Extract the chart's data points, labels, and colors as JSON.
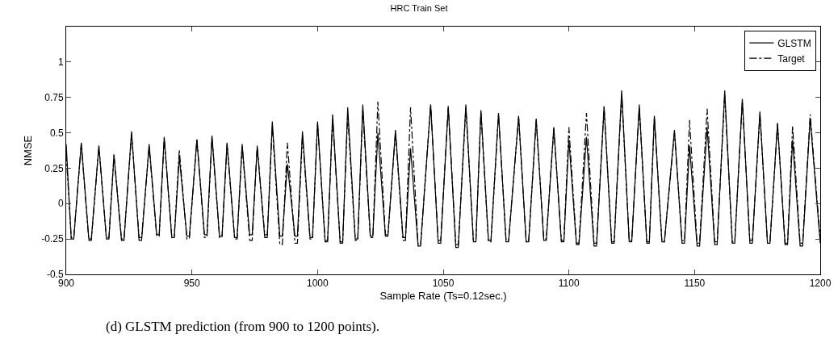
{
  "chart_data": {
    "type": "line",
    "title": "HRC Train Set",
    "xlabel": "Sample Rate (Ts=0.12sec.)",
    "ylabel": "NMSE",
    "annotations": [
      "(d) GLSTM prediction (from 900 to 1200 points)."
    ],
    "xlim": [
      900,
      1200
    ],
    "xticks": [
      900,
      950,
      1000,
      1050,
      1100,
      1150,
      1200
    ],
    "ylim": [
      -0.5,
      1.25
    ],
    "yticks": [
      -0.5,
      -0.25,
      0,
      0.25,
      0.5,
      0.75,
      1
    ],
    "grid": false,
    "legend": "top right",
    "marker": "none",
    "x": [
      900,
      902,
      903,
      906,
      909,
      910,
      913,
      916,
      917,
      919,
      922,
      923,
      926,
      929,
      930,
      933,
      936,
      937,
      939,
      942,
      943,
      945,
      948,
      949,
      952,
      955,
      956,
      958,
      961,
      962,
      964,
      967,
      968,
      970,
      973,
      974,
      976,
      979,
      980,
      982,
      985,
      986,
      988,
      991,
      992,
      994,
      997,
      998,
      1000,
      1003,
      1004,
      1006,
      1009,
      1010,
      1012,
      1015,
      1016,
      1018,
      1021,
      1022,
      1024,
      1027,
      1028,
      1031,
      1034,
      1035,
      1037,
      1040,
      1041,
      1045,
      1048,
      1049,
      1052,
      1055,
      1056,
      1059,
      1062,
      1063,
      1065,
      1068,
      1069,
      1072,
      1075,
      1076,
      1080,
      1083,
      1084,
      1087,
      1090,
      1091,
      1094,
      1097,
      1098,
      1100,
      1103,
      1104,
      1107,
      1110,
      1111,
      1114,
      1117,
      1118,
      1121,
      1124,
      1125,
      1128,
      1131,
      1132,
      1134,
      1137,
      1138,
      1142,
      1145,
      1146,
      1148,
      1151,
      1152,
      1155,
      1158,
      1159,
      1162,
      1165,
      1166,
      1169,
      1172,
      1173,
      1176,
      1179,
      1180,
      1183,
      1186,
      1187,
      1189,
      1192,
      1193,
      1196,
      1200
    ],
    "series": [
      {
        "name": "GLSTM",
        "color": "#000000",
        "line_style": "solid",
        "values": [
          0.42,
          -0.25,
          -0.25,
          0.43,
          -0.25,
          -0.25,
          0.41,
          -0.25,
          -0.25,
          0.34,
          -0.26,
          -0.26,
          0.51,
          -0.26,
          -0.26,
          0.42,
          -0.22,
          -0.22,
          0.47,
          -0.24,
          -0.24,
          0.33,
          -0.23,
          -0.23,
          0.45,
          -0.22,
          -0.22,
          0.48,
          -0.23,
          -0.23,
          0.43,
          -0.24,
          -0.24,
          0.42,
          -0.22,
          -0.22,
          0.4,
          -0.24,
          -0.24,
          0.58,
          -0.23,
          -0.23,
          0.28,
          -0.23,
          -0.23,
          0.51,
          -0.24,
          -0.24,
          0.58,
          -0.27,
          -0.27,
          0.63,
          -0.28,
          -0.28,
          0.68,
          -0.25,
          -0.25,
          0.7,
          -0.23,
          -0.23,
          0.5,
          -0.23,
          -0.23,
          0.52,
          -0.24,
          -0.24,
          0.39,
          -0.3,
          -0.3,
          0.7,
          -0.28,
          -0.28,
          0.68,
          -0.31,
          -0.31,
          0.7,
          -0.27,
          -0.27,
          0.66,
          -0.26,
          -0.26,
          0.64,
          -0.27,
          -0.27,
          0.62,
          -0.27,
          -0.27,
          0.6,
          -0.26,
          -0.26,
          0.54,
          -0.27,
          -0.27,
          0.45,
          -0.29,
          -0.29,
          0.47,
          -0.3,
          -0.3,
          0.68,
          -0.28,
          -0.28,
          0.8,
          -0.27,
          -0.27,
          0.7,
          -0.28,
          -0.28,
          0.62,
          -0.27,
          -0.27,
          0.52,
          -0.28,
          -0.28,
          0.41,
          -0.3,
          -0.3,
          0.54,
          -0.29,
          -0.29,
          0.8,
          -0.28,
          -0.28,
          0.74,
          -0.28,
          -0.28,
          0.65,
          -0.28,
          -0.28,
          0.57,
          -0.29,
          -0.29,
          0.45,
          -0.3,
          -0.3,
          0.6,
          -0.28
        ]
      },
      {
        "name": "Target",
        "color": "#000000",
        "line_style": "dashdot",
        "values": [
          0.35,
          -0.24,
          -0.24,
          0.42,
          -0.26,
          -0.26,
          0.4,
          -0.24,
          -0.24,
          0.35,
          -0.25,
          -0.25,
          0.49,
          -0.24,
          -0.24,
          0.4,
          -0.23,
          -0.23,
          0.46,
          -0.23,
          -0.23,
          0.38,
          -0.25,
          -0.25,
          0.46,
          -0.24,
          -0.24,
          0.47,
          -0.24,
          -0.24,
          0.42,
          -0.25,
          -0.25,
          0.41,
          -0.26,
          -0.26,
          0.41,
          -0.22,
          -0.22,
          0.55,
          -0.29,
          -0.29,
          0.43,
          -0.28,
          -0.28,
          0.48,
          -0.25,
          -0.25,
          0.57,
          -0.26,
          -0.26,
          0.6,
          -0.27,
          -0.27,
          0.63,
          -0.26,
          -0.26,
          0.66,
          -0.24,
          -0.24,
          0.72,
          -0.22,
          -0.22,
          0.5,
          -0.26,
          -0.26,
          0.68,
          -0.29,
          -0.29,
          0.7,
          -0.26,
          -0.26,
          0.69,
          -0.29,
          -0.29,
          0.68,
          -0.26,
          -0.26,
          0.65,
          -0.27,
          -0.27,
          0.63,
          -0.26,
          -0.26,
          0.61,
          -0.27,
          -0.27,
          0.59,
          -0.25,
          -0.25,
          0.53,
          -0.26,
          -0.26,
          0.54,
          -0.28,
          -0.28,
          0.64,
          -0.28,
          -0.28,
          0.69,
          -0.27,
          -0.27,
          0.77,
          -0.26,
          -0.26,
          0.68,
          -0.27,
          -0.27,
          0.61,
          -0.27,
          -0.27,
          0.5,
          -0.26,
          -0.26,
          0.59,
          -0.28,
          -0.28,
          0.67,
          -0.27,
          -0.27,
          0.77,
          -0.27,
          -0.27,
          0.72,
          -0.26,
          -0.26,
          0.63,
          -0.27,
          -0.27,
          0.56,
          -0.28,
          -0.28,
          0.55,
          -0.28,
          -0.28,
          0.63,
          -0.25
        ]
      }
    ]
  }
}
